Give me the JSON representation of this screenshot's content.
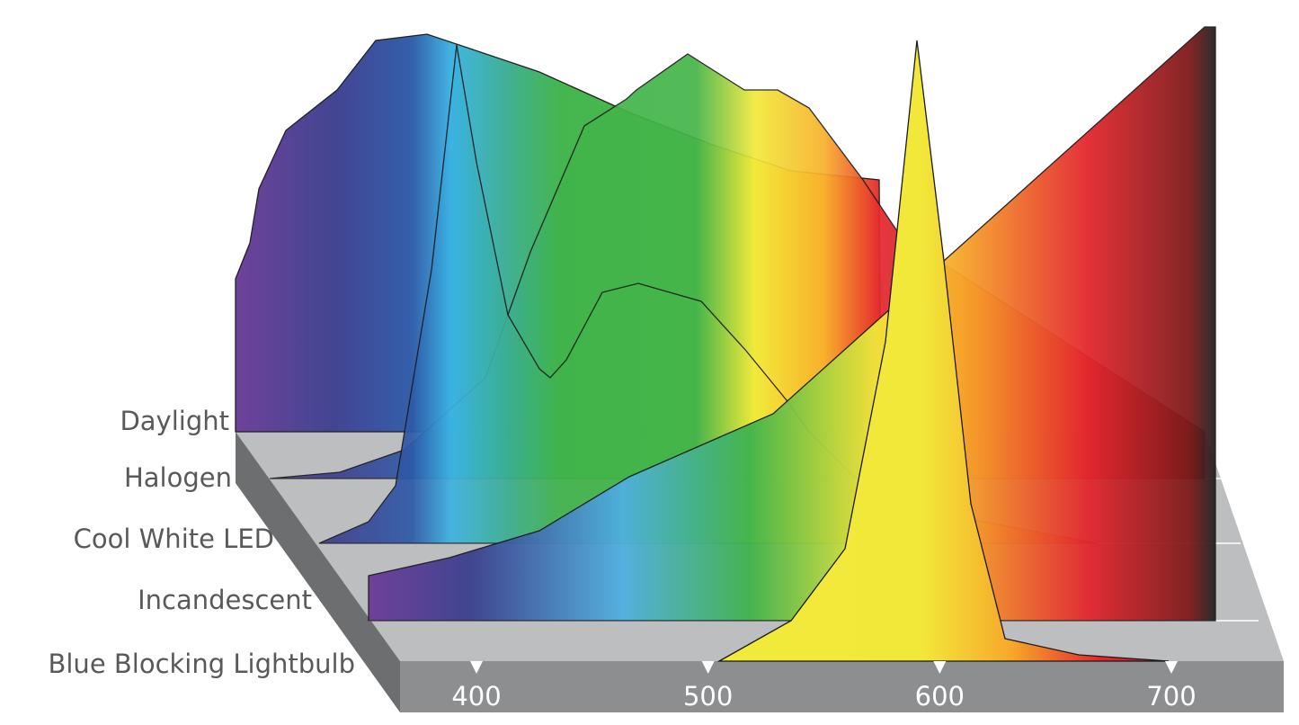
{
  "labels": [
    "Daylight",
    "Halogen",
    "Cool White LED",
    "Incandescent",
    "Blue Blocking Lightbulb"
  ],
  "axis": {
    "ticks": [
      400,
      500,
      600,
      700
    ]
  }
}
